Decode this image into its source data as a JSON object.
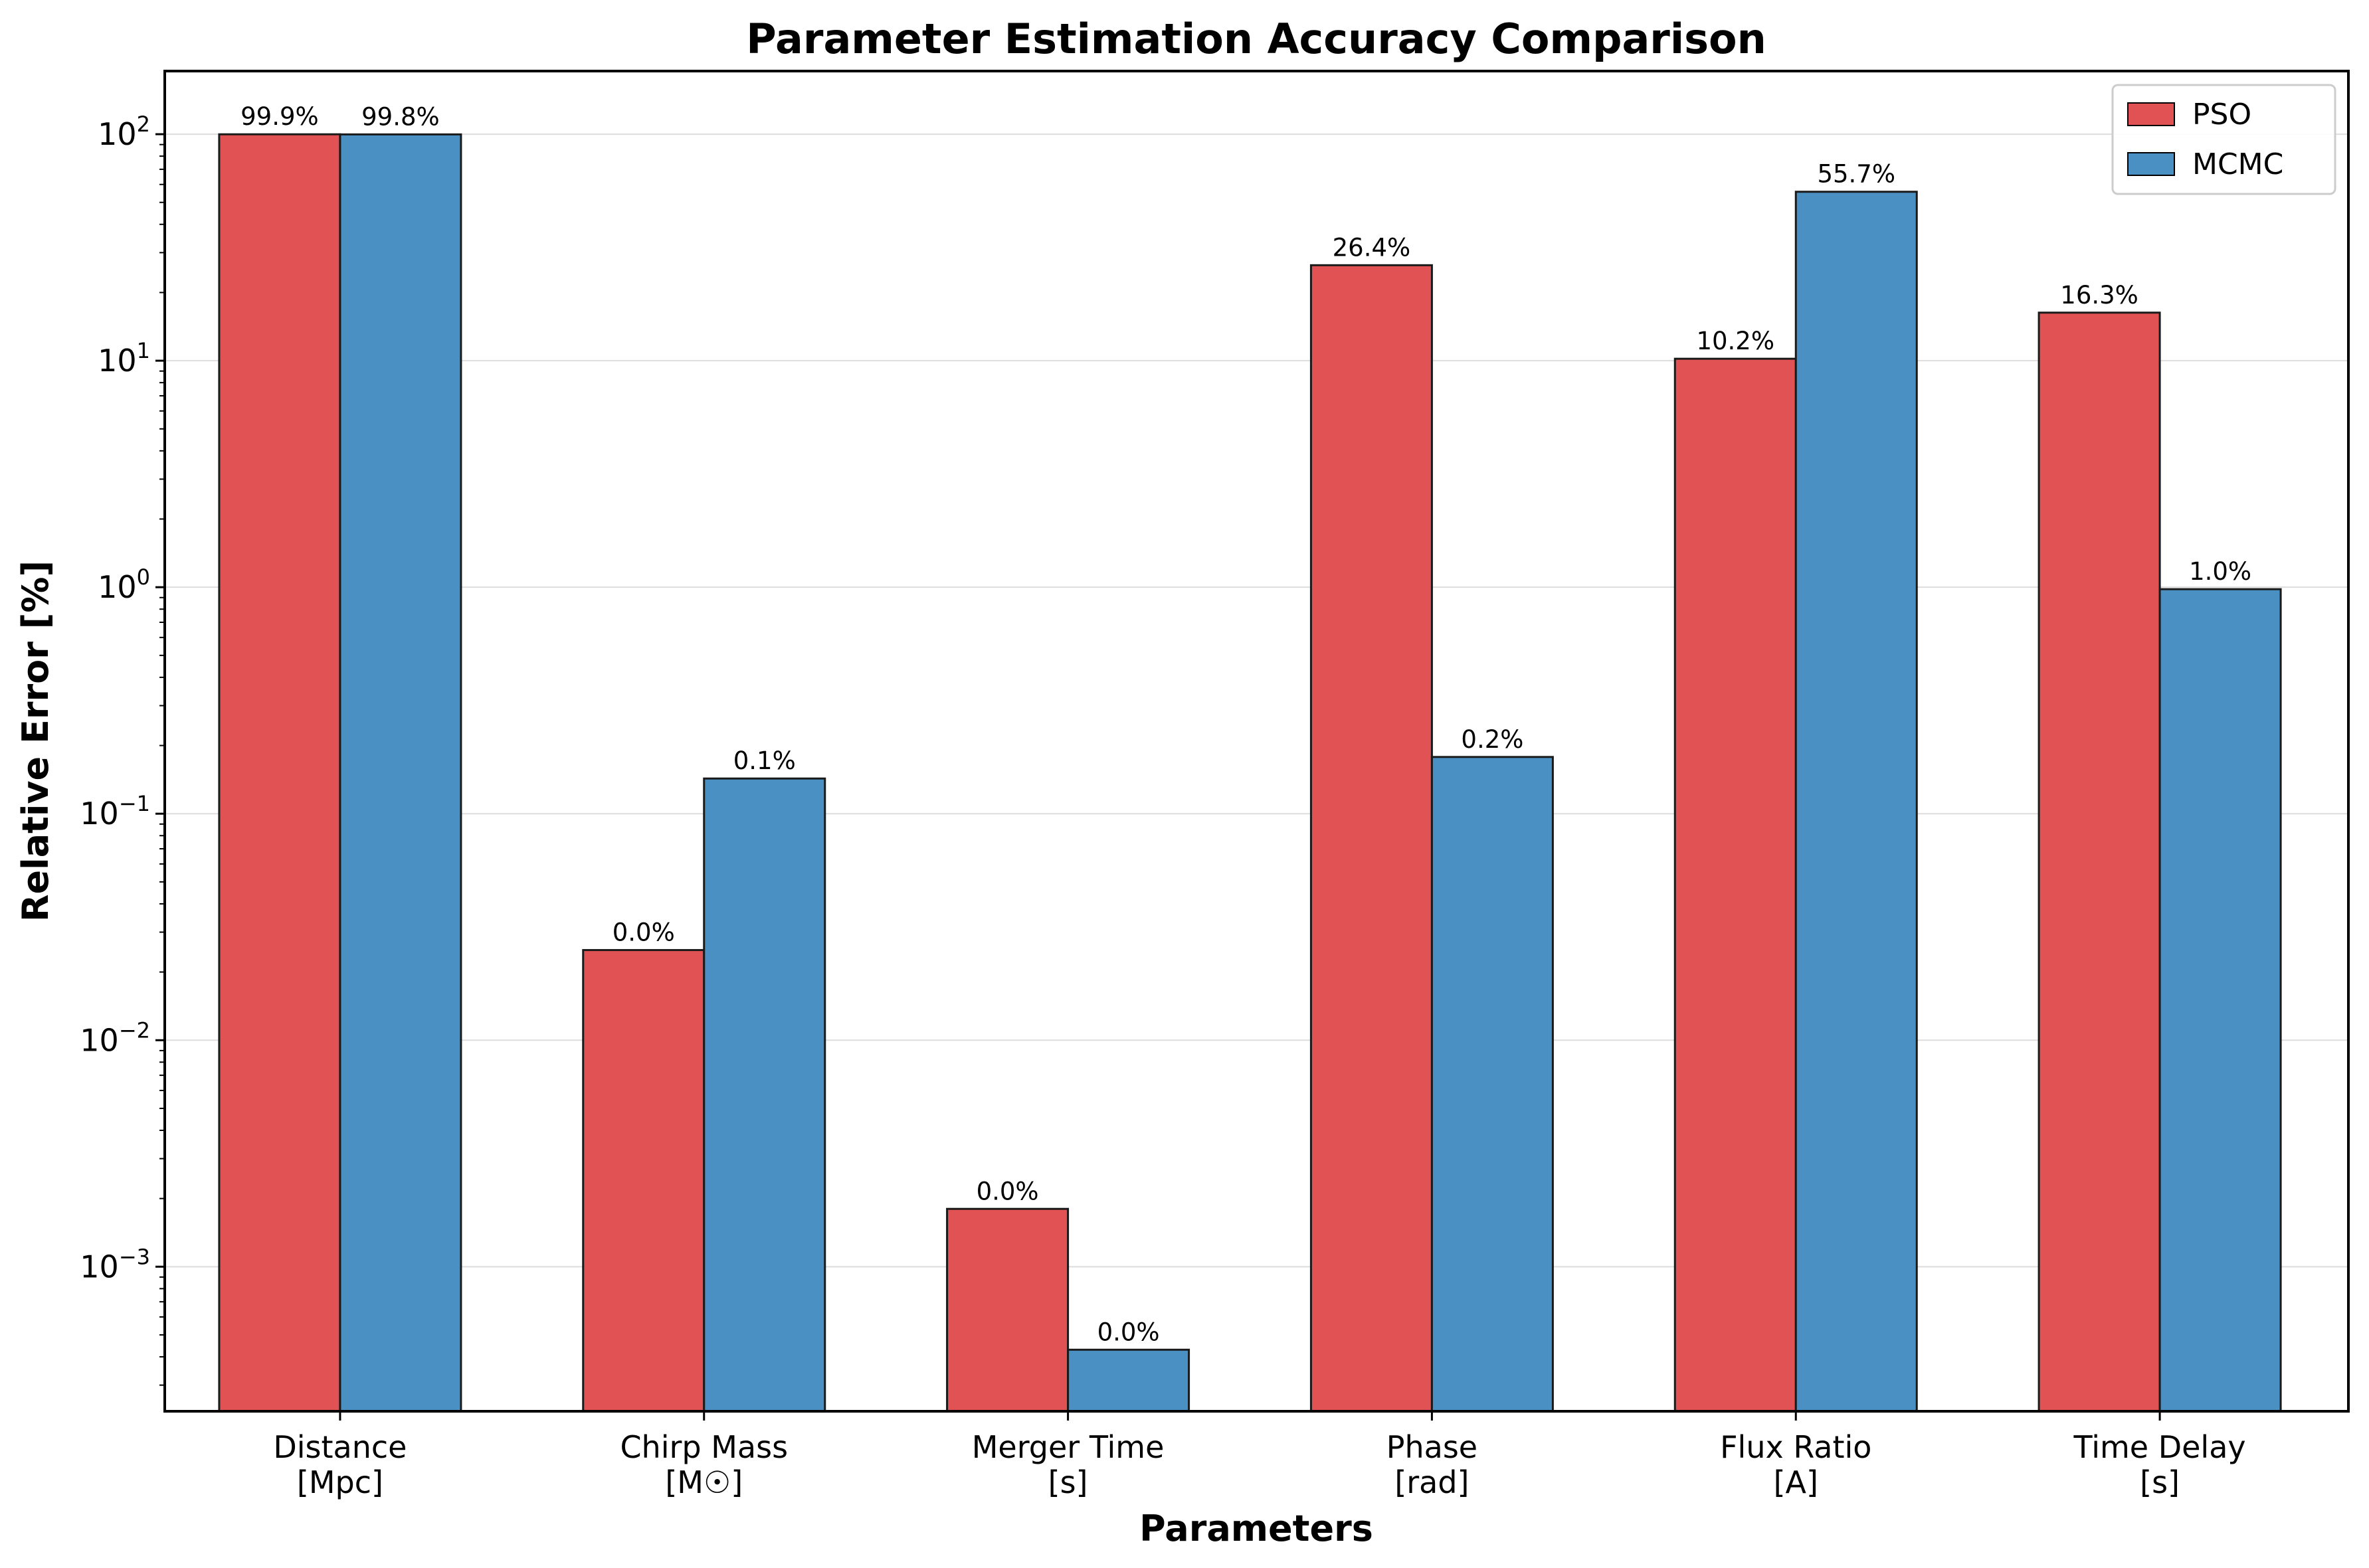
{
  "chart_data": {
    "type": "bar",
    "title": "Parameter Estimation Accuracy Comparison",
    "xlabel": "Parameters",
    "ylabel": "Relative Error [%]",
    "yscale": "log",
    "ylim": [
      0.00023,
      190
    ],
    "yticks": [
      {
        "base": "10",
        "exp": "2",
        "value": 100
      },
      {
        "base": "10",
        "exp": "1",
        "value": 10
      },
      {
        "base": "10",
        "exp": "0",
        "value": 1
      },
      {
        "base": "10",
        "exp": "−1",
        "value": 0.1
      },
      {
        "base": "10",
        "exp": "−2",
        "value": 0.01
      },
      {
        "base": "10",
        "exp": "−3",
        "value": 0.001
      }
    ],
    "categories": [
      [
        "Distance",
        "[Mpc]"
      ],
      [
        "Chirp Mass",
        "[M☉]"
      ],
      [
        "Merger Time",
        "[s]"
      ],
      [
        "Phase",
        "[rad]"
      ],
      [
        "Flux Ratio",
        "[A]"
      ],
      [
        "Time Delay",
        "[s]"
      ]
    ],
    "series": [
      {
        "name": "PSO",
        "color": "#e05254",
        "values": [
          99.9,
          0.025,
          0.0018,
          26.4,
          10.2,
          16.3
        ],
        "labels": [
          "99.9%",
          "0.0%",
          "0.0%",
          "26.4%",
          "10.2%",
          "16.3%"
        ]
      },
      {
        "name": "MCMC",
        "color": "#4a90c2",
        "values": [
          99.8,
          0.143,
          0.00043,
          0.178,
          55.7,
          0.98
        ],
        "labels": [
          "99.8%",
          "0.1%",
          "0.0%",
          "0.2%",
          "55.7%",
          "1.0%"
        ]
      }
    ],
    "grid": "y-major",
    "legend": "top-right"
  }
}
